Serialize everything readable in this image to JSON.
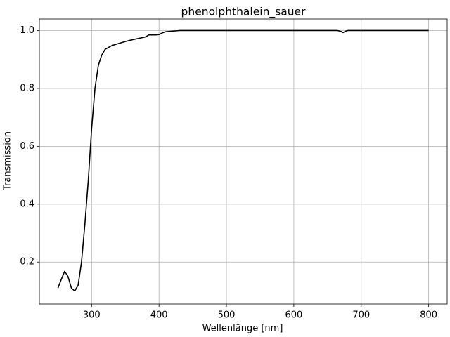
{
  "chart_data": {
    "type": "line",
    "title": "phenolphthalein_sauer",
    "x_label": "Wellenlänge [nm]",
    "y_label": "Transmission",
    "x": [
      250,
      255,
      260,
      265,
      270,
      275,
      280,
      285,
      290,
      295,
      300,
      305,
      310,
      315,
      320,
      330,
      340,
      350,
      360,
      370,
      380,
      385,
      395,
      400,
      405,
      410,
      420,
      430,
      500,
      600,
      665,
      670,
      673,
      677,
      680,
      800
    ],
    "series": [
      {
        "name": "phenolphthalein_sauer",
        "color": "#000000",
        "values": [
          0.11,
          0.14,
          0.168,
          0.15,
          0.11,
          0.1,
          0.12,
          0.2,
          0.33,
          0.48,
          0.66,
          0.8,
          0.88,
          0.915,
          0.935,
          0.948,
          0.955,
          0.962,
          0.968,
          0.973,
          0.978,
          0.985,
          0.985,
          0.986,
          0.992,
          0.996,
          0.998,
          1.0,
          1.0,
          1.0,
          1.0,
          0.997,
          0.993,
          0.998,
          1.0,
          1.0
        ]
      }
    ],
    "xlim": [
      222.5,
      827.5
    ],
    "xticks": [
      300,
      400,
      500,
      600,
      700,
      800
    ],
    "ylim": [
      0.055,
      1.04
    ],
    "yticks": [
      0.2,
      0.4,
      0.6,
      0.8,
      {
        "value": 1.0,
        "label": "1.0"
      }
    ],
    "grid": true
  }
}
